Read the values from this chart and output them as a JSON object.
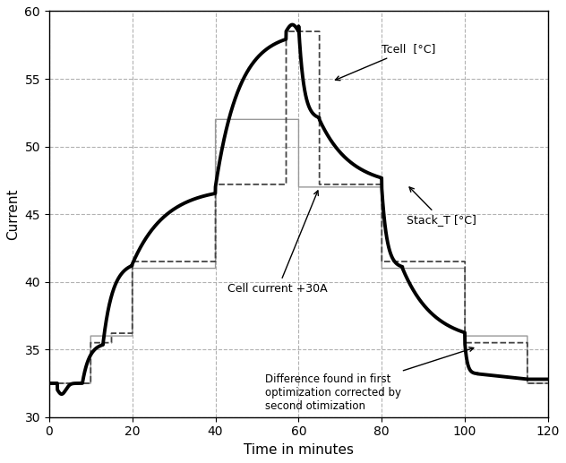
{
  "title": "",
  "xlabel": "Time in minutes",
  "ylabel": "Current",
  "xlim": [
    0,
    120
  ],
  "ylim": [
    30,
    60
  ],
  "yticks": [
    30,
    35,
    40,
    45,
    50,
    55,
    60
  ],
  "xticks": [
    0,
    20,
    40,
    60,
    80,
    100,
    120
  ],
  "grid_color": "#aaaaaa",
  "bg_color": "#ffffff",
  "annotation_tcell": "Tcell  [°C]",
  "annotation_stackt": "Stack_T [°C]",
  "annotation_current": "Cell current +30A",
  "annotation_diff": "Difference found in first\noptimization corrected by\nsecond otimization"
}
